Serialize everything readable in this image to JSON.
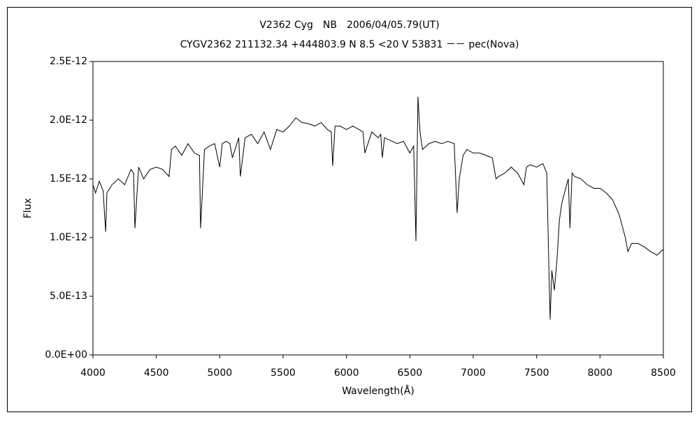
{
  "chart_data": {
    "type": "line",
    "title": "V2362 Cyg　NB　2006/04/05.79(UT)",
    "subtitle": "CYGV2362 211132.34 +444803.9 N 8.5 <20 V 53831 －－ pec(Nova)",
    "xlabel": "Wavelength(Å)",
    "ylabel": "Flux",
    "xlim": [
      4000,
      8500
    ],
    "xticks": [
      4000,
      4500,
      5000,
      5500,
      6000,
      6500,
      7000,
      7500,
      8000,
      8500
    ],
    "ylim": [
      0,
      2.5e-12
    ],
    "yticks": [
      {
        "value": 0,
        "label": "0.0E+00"
      },
      {
        "value": 5e-13,
        "label": "5.0E-13"
      },
      {
        "value": 1e-12,
        "label": "1.0E-12"
      },
      {
        "value": 1.5e-12,
        "label": "1.5E-12"
      },
      {
        "value": 2e-12,
        "label": "2.0E-12"
      },
      {
        "value": 2.5e-12,
        "label": "2.5E-12"
      }
    ],
    "grid": false,
    "series": [
      {
        "color": "#000000",
        "x": [
          4000,
          4020,
          4050,
          4080,
          4100,
          4110,
          4150,
          4200,
          4250,
          4300,
          4320,
          4331,
          4360,
          4400,
          4450,
          4500,
          4550,
          4600,
          4620,
          4650,
          4700,
          4750,
          4800,
          4840,
          4849,
          4880,
          4920,
          4960,
          5000,
          5020,
          5050,
          5080,
          5100,
          5150,
          5163,
          5200,
          5250,
          5300,
          5350,
          5400,
          5450,
          5500,
          5550,
          5600,
          5650,
          5700,
          5750,
          5800,
          5850,
          5880,
          5891,
          5910,
          5950,
          6000,
          6050,
          6100,
          6130,
          6145,
          6200,
          6250,
          6270,
          6283,
          6300,
          6400,
          6450,
          6500,
          6530,
          6548,
          6564,
          6580,
          6600,
          6650,
          6700,
          6750,
          6800,
          6850,
          6873,
          6890,
          6920,
          6950,
          7000,
          7050,
          7100,
          7150,
          7180,
          7200,
          7250,
          7300,
          7350,
          7400,
          7420,
          7450,
          7500,
          7550,
          7580,
          7600,
          7607,
          7620,
          7640,
          7660,
          7680,
          7700,
          7750,
          7763,
          7780,
          7800,
          7850,
          7900,
          7950,
          8000,
          8050,
          8100,
          8150,
          8200,
          8220,
          8250,
          8300,
          8350,
          8400,
          8450,
          8500
        ],
        "values": [
          1.45e-12,
          1.38e-12,
          1.48e-12,
          1.4e-12,
          1.05e-12,
          1.38e-12,
          1.45e-12,
          1.5e-12,
          1.45e-12,
          1.58e-12,
          1.55e-12,
          1.08e-12,
          1.6e-12,
          1.5e-12,
          1.58e-12,
          1.6e-12,
          1.58e-12,
          1.52e-12,
          1.75e-12,
          1.78e-12,
          1.7e-12,
          1.8e-12,
          1.72e-12,
          1.7e-12,
          1.08e-12,
          1.75e-12,
          1.78e-12,
          1.8e-12,
          1.6e-12,
          1.8e-12,
          1.82e-12,
          1.8e-12,
          1.68e-12,
          1.85e-12,
          1.52e-12,
          1.85e-12,
          1.88e-12,
          1.8e-12,
          1.9e-12,
          1.75e-12,
          1.92e-12,
          1.9e-12,
          1.95e-12,
          2.02e-12,
          1.98e-12,
          1.97e-12,
          1.95e-12,
          1.98e-12,
          1.92e-12,
          1.9e-12,
          1.61e-12,
          1.95e-12,
          1.95e-12,
          1.92e-12,
          1.95e-12,
          1.92e-12,
          1.9e-12,
          1.72e-12,
          1.9e-12,
          1.85e-12,
          1.88e-12,
          1.68e-12,
          1.85e-12,
          1.8e-12,
          1.82e-12,
          1.72e-12,
          1.78e-12,
          9.7e-13,
          2.2e-12,
          1.9e-12,
          1.75e-12,
          1.8e-12,
          1.82e-12,
          1.8e-12,
          1.82e-12,
          1.8e-12,
          1.21e-12,
          1.5e-12,
          1.7e-12,
          1.75e-12,
          1.72e-12,
          1.72e-12,
          1.7e-12,
          1.68e-12,
          1.5e-12,
          1.52e-12,
          1.55e-12,
          1.6e-12,
          1.55e-12,
          1.45e-12,
          1.6e-12,
          1.62e-12,
          1.6e-12,
          1.63e-12,
          1.55e-12,
          6e-13,
          3e-13,
          7.2e-13,
          5.5e-13,
          8e-13,
          1.15e-12,
          1.3e-12,
          1.5e-12,
          1.08e-12,
          1.55e-12,
          1.52e-12,
          1.5e-12,
          1.45e-12,
          1.42e-12,
          1.42e-12,
          1.38e-12,
          1.32e-12,
          1.2e-12,
          1e-12,
          8.8e-13,
          9.5e-13,
          9.5e-13,
          9.2e-13,
          8.8e-13,
          8.5e-13,
          9e-13
        ]
      }
    ]
  }
}
